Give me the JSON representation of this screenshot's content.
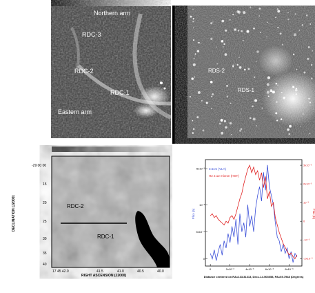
{
  "panel_a": {
    "labels": {
      "northern_arm": "Northern arm",
      "rdc3": "RDC-3",
      "rdc2": "RDC-2",
      "rdc1": "RDC-1",
      "eastern_arm": "Eastern arm"
    }
  },
  "panel_b": {
    "labels": {
      "rds2": "RDS-2",
      "rds1": "RDS-1"
    }
  },
  "panel_c": {
    "ylabel": "DECLINATION (J2000)",
    "xlabel": "RIGHT ASCENSION (J2000)",
    "yticks": [
      "-29 00 00",
      "15",
      "20",
      "25",
      "30",
      "35",
      "40"
    ],
    "xticks": [
      "17 45 42.0",
      "41.5",
      "41.0",
      "40.5",
      "40.0"
    ],
    "labels": {
      "rdc2": "RDC-2",
      "rdc1": "RDC-1"
    }
  },
  "chart_data": {
    "type": "line",
    "legend_placement": "top-left",
    "xlabel": "Distance centered on RA=133.31313, Dec=-14.503058, PA=69.7948   (Degrees)",
    "ylabel_left": "Flux (a)",
    "ylabel_right": "Flux (b)",
    "xticks": [
      "0",
      "2x10⁻³",
      "4x10⁻³",
      "6x10⁻³",
      "8x10⁻³"
    ],
    "yticks_left": [
      "5x10⁻³",
      "10⁻³",
      "5x10⁻⁴",
      "0"
    ],
    "yticks_right": [
      "3x10⁻³",
      "2x10⁻³",
      "10⁻³",
      "0",
      "-10⁻³",
      "-2x10⁻³"
    ],
    "xlim": [
      -0.0005,
      0.0093
    ],
    "ylim_left": [
      -0.0004,
      0.0055
    ],
    "ylim_right": [
      -0.0024,
      0.0033
    ],
    "series": [
      {
        "name": "3.5cm (VLA)",
        "axis": "left",
        "color": "#3a4fd8",
        "x": [
          0.0,
          0.0002,
          0.0004,
          0.0006,
          0.0008,
          0.001,
          0.0012,
          0.0014,
          0.0016,
          0.0018,
          0.002,
          0.0022,
          0.0024,
          0.0026,
          0.0028,
          0.003,
          0.0032,
          0.0034,
          0.0036,
          0.0038,
          0.004,
          0.0042,
          0.0044,
          0.0046,
          0.0048,
          0.005,
          0.0052,
          0.0054,
          0.0056,
          0.0058,
          0.006,
          0.0062,
          0.0064,
          0.0066,
          0.0068,
          0.007,
          0.0072,
          0.0074,
          0.0076,
          0.0078,
          0.008,
          0.0082,
          0.0084,
          0.0086,
          0.0088
        ],
        "y": [
          0.0003,
          0.0,
          0.0005,
          -0.0001,
          0.0004,
          0.0008,
          0.0002,
          0.001,
          0.0006,
          0.0014,
          0.0009,
          0.0018,
          0.0012,
          0.0022,
          0.0008,
          0.0025,
          0.0015,
          0.002,
          0.0012,
          0.003,
          0.0018,
          0.0024,
          0.0015,
          0.0028,
          0.0035,
          0.004,
          0.0032,
          0.0048,
          0.0038,
          0.0052,
          0.004,
          0.0035,
          0.003,
          0.002,
          0.0012,
          0.001,
          0.0004,
          0.0008,
          0.0003,
          0.0006,
          0.0,
          0.0004,
          -0.0002,
          0.0003,
          0.0001
        ]
      },
      {
        "name": "H2 2.12 micron (HST)",
        "axis": "right",
        "color": "#e02020",
        "x": [
          0.0,
          0.0002,
          0.0004,
          0.0006,
          0.0008,
          0.001,
          0.0012,
          0.0014,
          0.0016,
          0.0018,
          0.002,
          0.0022,
          0.0024,
          0.0026,
          0.0028,
          0.003,
          0.0032,
          0.0034,
          0.0036,
          0.0038,
          0.004,
          0.0042,
          0.0044,
          0.0046,
          0.0048,
          0.005,
          0.0052,
          0.0054,
          0.0056,
          0.0058,
          0.006,
          0.0062,
          0.0064,
          0.0066,
          0.0068,
          0.007,
          0.0072,
          0.0074,
          0.0076,
          0.0078,
          0.008,
          0.0082,
          0.0084,
          0.0086,
          0.0088
        ],
        "y": [
          0.0003,
          0.0004,
          0.0002,
          0.0003,
          0.0001,
          0.0,
          -0.0001,
          -0.0002,
          0.0,
          -0.0001,
          0.0002,
          0.0003,
          0.0001,
          0.0004,
          0.0008,
          0.0012,
          0.0015,
          0.002,
          0.0024,
          0.0028,
          0.003,
          0.0026,
          0.0029,
          0.0025,
          0.0027,
          0.0022,
          0.0026,
          0.0018,
          0.0024,
          0.0012,
          0.0016,
          0.0008,
          0.001,
          0.0002,
          -0.0002,
          -0.0006,
          -0.0009,
          -0.0012,
          -0.0014,
          -0.0016,
          -0.0018,
          -0.0017,
          -0.0019,
          -0.002,
          -0.0018
        ]
      }
    ]
  }
}
